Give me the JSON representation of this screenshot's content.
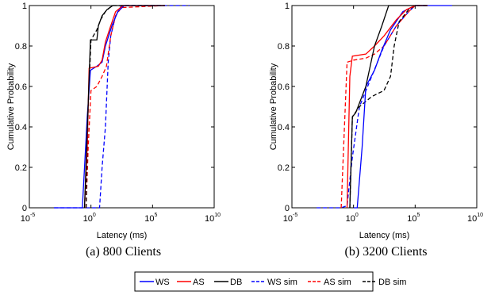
{
  "legend": [
    {
      "label": "WS",
      "color": "#0000ff",
      "dash": false
    },
    {
      "label": "AS",
      "color": "#ff0000",
      "dash": false
    },
    {
      "label": "DB",
      "color": "#000000",
      "dash": false
    },
    {
      "label": "WS sim",
      "color": "#0000ff",
      "dash": true
    },
    {
      "label": "AS sim",
      "color": "#ff0000",
      "dash": true
    },
    {
      "label": "DB sim",
      "color": "#000000",
      "dash": true
    }
  ],
  "chart_data": [
    {
      "type": "line",
      "caption": "(a) 800 Clients",
      "xlabel": "Latency (ms)",
      "ylabel": "Cumulative Probability",
      "xscale": "log",
      "xlim": [
        1e-05,
        10000000000.0
      ],
      "ylim": [
        0,
        1
      ],
      "x_ticks": [
        {
          "base": "10",
          "exp": "-5"
        },
        {
          "base": "10",
          "exp": "0"
        },
        {
          "base": "10",
          "exp": "5"
        },
        {
          "base": "10",
          "exp": "10"
        }
      ],
      "y_ticks": [
        "0",
        "0.2",
        "0.4",
        "0.6",
        "0.8",
        "1"
      ],
      "series": [
        {
          "name": "WS",
          "points": [
            [
              0.001,
              0
            ],
            [
              0.2,
              0
            ],
            [
              0.5,
              0.45
            ],
            [
              0.9,
              0.68
            ],
            [
              3,
              0.7
            ],
            [
              8,
              0.72
            ],
            [
              15,
              0.8
            ],
            [
              50,
              0.9
            ],
            [
              150,
              0.97
            ],
            [
              500,
              1
            ],
            [
              10000.0,
              1
            ],
            [
              1000000.0,
              1
            ]
          ]
        },
        {
          "name": "AS",
          "points": [
            [
              0.3,
              0
            ],
            [
              0.5,
              0.3
            ],
            [
              0.7,
              0.69
            ],
            [
              4,
              0.7
            ],
            [
              8,
              0.73
            ],
            [
              15,
              0.82
            ],
            [
              40,
              0.9
            ],
            [
              100,
              0.97
            ],
            [
              400,
              1
            ],
            [
              1000000.0,
              1
            ]
          ]
        },
        {
          "name": "DB",
          "points": [
            [
              0.3,
              0
            ],
            [
              0.55,
              0.45
            ],
            [
              0.9,
              0.83
            ],
            [
              3,
              0.83
            ],
            [
              4,
              0.9
            ],
            [
              8,
              0.95
            ],
            [
              20,
              0.98
            ],
            [
              60,
              1
            ],
            [
              1000000.0,
              1
            ]
          ]
        },
        {
          "name": "WS sim",
          "points": [
            [
              0.001,
              0
            ],
            [
              5,
              0
            ],
            [
              8,
              0.2
            ],
            [
              15,
              0.4
            ],
            [
              25,
              0.72
            ],
            [
              40,
              0.85
            ],
            [
              100,
              0.95
            ],
            [
              300,
              1
            ],
            [
              1000000.0,
              1
            ],
            [
              100000000.0,
              1
            ]
          ]
        },
        {
          "name": "AS sim",
          "points": [
            [
              0.4,
              0
            ],
            [
              0.6,
              0.3
            ],
            [
              1,
              0.58
            ],
            [
              3,
              0.6
            ],
            [
              8,
              0.65
            ],
            [
              18,
              0.7
            ],
            [
              40,
              0.85
            ],
            [
              100,
              0.95
            ],
            [
              300,
              0.99
            ],
            [
              1000000.0,
              1
            ]
          ]
        },
        {
          "name": "DB sim",
          "points": [
            [
              0.4,
              0
            ],
            [
              0.6,
              0.5
            ],
            [
              1,
              0.83
            ],
            [
              3,
              0.88
            ],
            [
              6,
              0.93
            ],
            [
              15,
              0.97
            ],
            [
              50,
              1
            ],
            [
              1000000.0,
              1
            ]
          ]
        }
      ]
    },
    {
      "type": "line",
      "caption": "(b) 3200 Clients",
      "xlabel": "Latency (ms)",
      "ylabel": "Cumulative Probability",
      "xscale": "log",
      "xlim": [
        1e-05,
        10000000000.0
      ],
      "ylim": [
        0,
        1
      ],
      "x_ticks": [
        {
          "base": "10",
          "exp": "-5"
        },
        {
          "base": "10",
          "exp": "0"
        },
        {
          "base": "10",
          "exp": "5"
        },
        {
          "base": "10",
          "exp": "10"
        }
      ],
      "y_ticks": [
        "0",
        "0.2",
        "0.4",
        "0.6",
        "0.8",
        "1"
      ],
      "series": [
        {
          "name": "WS",
          "points": [
            [
              1,
              0
            ],
            [
              2,
              0
            ],
            [
              5,
              0.3
            ],
            [
              10,
              0.6
            ],
            [
              50,
              0.68
            ],
            [
              200,
              0.78
            ],
            [
              1000.0,
              0.88
            ],
            [
              10000.0,
              0.97
            ],
            [
              100000.0,
              1
            ],
            [
              100000000.0,
              1
            ]
          ]
        },
        {
          "name": "AS",
          "points": [
            [
              0.3,
              0
            ],
            [
              0.5,
              0.65
            ],
            [
              0.8,
              0.75
            ],
            [
              10,
              0.76
            ],
            [
              50,
              0.8
            ],
            [
              300,
              0.85
            ],
            [
              3000.0,
              0.93
            ],
            [
              20000.0,
              0.98
            ],
            [
              100000.0,
              1
            ],
            [
              1000000.0,
              1
            ]
          ]
        },
        {
          "name": "DB",
          "points": [
            [
              0.5,
              0
            ],
            [
              0.8,
              0.45
            ],
            [
              1.5,
              0.47
            ],
            [
              10,
              0.6
            ],
            [
              50,
              0.8
            ],
            [
              200,
              0.9
            ],
            [
              700,
              1
            ],
            [
              1000000.0,
              1
            ]
          ]
        },
        {
          "name": "WS sim",
          "points": [
            [
              0.001,
              0
            ],
            [
              0.1,
              0
            ],
            [
              0.3,
              0.01
            ],
            [
              0.8,
              0.25
            ],
            [
              3,
              0.5
            ],
            [
              30,
              0.65
            ],
            [
              300,
              0.8
            ],
            [
              3000.0,
              0.9
            ],
            [
              30000.0,
              0.97
            ],
            [
              100000.0,
              1
            ],
            [
              1000000.0,
              1
            ]
          ]
        },
        {
          "name": "AS sim",
          "points": [
            [
              0.1,
              0
            ],
            [
              0.3,
              0.72
            ],
            [
              1,
              0.73
            ],
            [
              10,
              0.74
            ],
            [
              50,
              0.76
            ],
            [
              300,
              0.8
            ],
            [
              3000.0,
              0.9
            ],
            [
              30000.0,
              0.97
            ],
            [
              100000.0,
              1
            ],
            [
              1000000.0,
              1
            ]
          ]
        },
        {
          "name": "DB sim",
          "points": [
            [
              0.5,
              0
            ],
            [
              0.8,
              0.45
            ],
            [
              3,
              0.5
            ],
            [
              30,
              0.55
            ],
            [
              300,
              0.58
            ],
            [
              1000.0,
              0.65
            ],
            [
              2000.0,
              0.8
            ],
            [
              5000.0,
              0.92
            ],
            [
              30000.0,
              0.98
            ],
            [
              100000.0,
              1
            ],
            [
              1000000.0,
              1
            ]
          ]
        }
      ]
    }
  ]
}
